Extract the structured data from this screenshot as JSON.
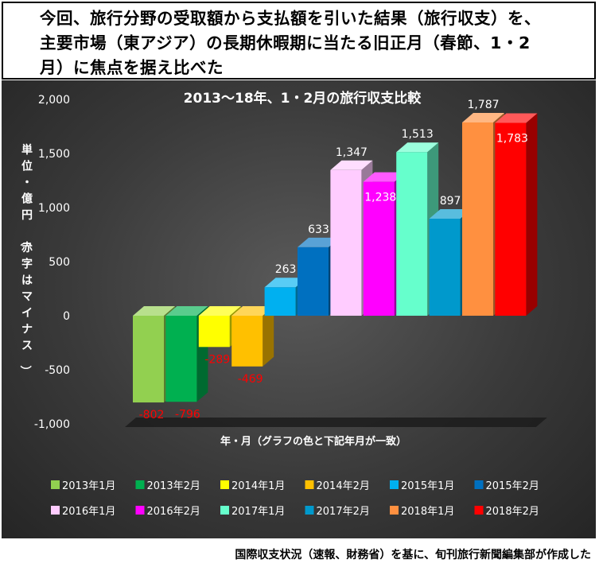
{
  "headline": {
    "line1": "今回、旅行分野の受取額から支払額を引いた結果（旅行収支）を、",
    "line2": "主要市場（東アジア）の長期休暇期に当たる旧正月（春節、1・2",
    "line3": "月）に焦点を据え比べた"
  },
  "footer_note": "国際収支状況（速報、財務省）を基に、旬刊旅行新聞編集部が作成した",
  "chart_data": {
    "type": "bar",
    "title": "2013～18年、1・2月の旅行収支比較",
    "xlabel": "年・月（グラフの色と下記年月が一致）",
    "ylabel": "単位・億円（赤字はマイナス）",
    "ylim": [
      -1000,
      2000
    ],
    "yticks": [
      -1000,
      -500,
      0,
      500,
      1000,
      1500,
      2000
    ],
    "ytick_labels": [
      "-1,000",
      "-500",
      "0",
      "500",
      "1,000",
      "1,500",
      "2,000"
    ],
    "grid": false,
    "legend_position": "bottom",
    "categories": [
      "2013年1月",
      "2013年2月",
      "2014年1月",
      "2014年2月",
      "2015年1月",
      "2015年2月",
      "2016年1月",
      "2016年2月",
      "2017年1月",
      "2017年2月",
      "2018年1月",
      "2018年2月"
    ],
    "values": [
      -802,
      -796,
      -289,
      -469,
      263,
      633,
      1347,
      1238,
      1513,
      897,
      1787,
      1783
    ],
    "value_labels": [
      "-802",
      "-796",
      "-289",
      "-469",
      "263",
      "633",
      "1,347",
      "1,238",
      "1,513",
      "897",
      "1,787",
      "1,783"
    ],
    "colors": [
      "#92d050",
      "#00b050",
      "#ffff00",
      "#ffc000",
      "#00b0f0",
      "#0070c0",
      "#ffccff",
      "#ff00ff",
      "#66ffcc",
      "#0099cc",
      "#ff9040",
      "#ff0000"
    ],
    "negative_label_color": "#ff0000",
    "positive_label_color": "#ffffff"
  }
}
